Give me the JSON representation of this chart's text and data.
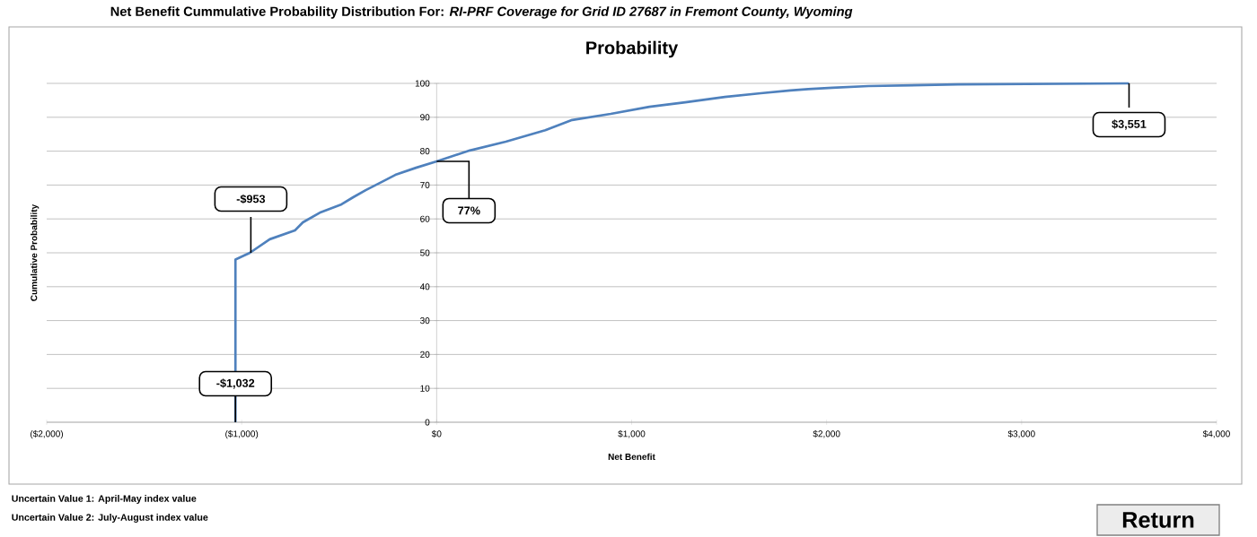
{
  "chart_data": {
    "type": "line",
    "title": "Net Benefit Cummulative Probability Distribution For: *RI-PRF Coverage for Grid ID 27687 in Fremont County, Wyoming*",
    "subtitle": "Probability",
    "xlabel": "Net Benefit",
    "ylabel": "Cumulative Probability",
    "x": [
      -1032,
      -1032,
      -958,
      -856,
      -727,
      -686,
      -594,
      -488,
      -428,
      -364,
      -272,
      -212,
      -106,
      0,
      170,
      355,
      557,
      695,
      893,
      1091,
      1275,
      1478,
      1662,
      1814,
      1906,
      2030,
      2215,
      2675,
      3551
    ],
    "series": [
      {
        "color": "#4f81bd",
        "values": [
          0,
          48,
          50,
          54,
          56.6,
          59,
          62,
          64.3,
          66.4,
          68.5,
          71.2,
          73,
          75.1,
          77,
          80.2,
          82.8,
          86.2,
          89.2,
          91,
          93.1,
          94.4,
          96,
          97.1,
          97.9,
          98.3,
          98.7,
          99.2,
          99.7,
          100
        ]
      }
    ],
    "xlim": [
      -2000,
      4000
    ],
    "xticks": [
      {
        "value": -2000,
        "label": "($2,000)"
      },
      {
        "value": -1000,
        "label": "($1,000)"
      },
      {
        "value": 0,
        "label": "$0"
      },
      {
        "value": 1000,
        "label": "$1,000"
      },
      {
        "value": 2000,
        "label": "$2,000"
      },
      {
        "value": 3000,
        "label": "$3,000"
      },
      {
        "value": 4000,
        "label": "$4,000"
      }
    ],
    "ylim": [
      0,
      100
    ],
    "yticks": [
      0,
      10,
      20,
      30,
      40,
      50,
      60,
      70,
      80,
      90,
      100
    ],
    "grid": "y",
    "marker": "none",
    "line_style": "solid",
    "annotations": [
      {
        "text": "-$1,032",
        "x": -1032,
        "y": 0
      },
      {
        "text": "-$953",
        "x": -953,
        "y": 50
      },
      {
        "text": "77%",
        "x": 0,
        "y": 77
      },
      {
        "text": "$3,551",
        "x": 3551,
        "y": 100
      },
      "Uncertain Value 1: April-May index value",
      "Uncertain Value 2: July-August index value",
      "Return"
    ]
  }
}
